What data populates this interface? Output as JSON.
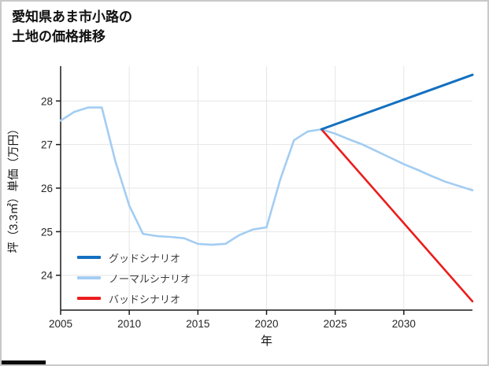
{
  "page": {
    "title_line1": "愛知県あま市小路の",
    "title_line2": "土地の価格推移"
  },
  "chart_data": {
    "type": "line",
    "title": "愛知県あま市小路の土地の価格推移",
    "xlabel": "年",
    "ylabel": "坪（3.3㎡）単価（万円）",
    "xlim": [
      2005,
      2035
    ],
    "ylim": [
      23.2,
      28.8
    ],
    "x_ticks": [
      2005,
      2010,
      2015,
      2020,
      2025,
      2030
    ],
    "y_ticks": [
      24,
      25,
      26,
      27,
      28
    ],
    "grid": true,
    "legend_position": "lower-left",
    "colors": {
      "grid": "#e6e6e6",
      "axis": "#1a1a1a",
      "tick_text": "#262626"
    },
    "series": [
      {
        "name": "グッドシナリオ",
        "color": "#1470c0",
        "width": 3,
        "x": [
          2024,
          2035
        ],
        "y": [
          27.35,
          28.6
        ]
      },
      {
        "name": "ノーマルシナリオ",
        "color": "#a3cdf2",
        "width": 2.6,
        "x": [
          2005,
          2006,
          2007,
          2008,
          2009,
          2010,
          2011,
          2012,
          2013,
          2014,
          2015,
          2016,
          2017,
          2018,
          2019,
          2020,
          2021,
          2022,
          2023,
          2024,
          2025,
          2026,
          2027,
          2028,
          2029,
          2030,
          2031,
          2032,
          2033,
          2034,
          2035
        ],
        "y": [
          27.55,
          27.75,
          27.85,
          27.85,
          26.6,
          25.6,
          24.95,
          24.9,
          24.88,
          24.85,
          24.72,
          24.7,
          24.72,
          24.92,
          25.05,
          25.1,
          26.2,
          27.1,
          27.3,
          27.35,
          27.25,
          27.12,
          27.0,
          26.85,
          26.7,
          26.55,
          26.42,
          26.28,
          26.15,
          26.05,
          25.95
        ]
      },
      {
        "name": "バッドシナリオ",
        "color": "#ec1d1d",
        "width": 2.6,
        "x": [
          2024,
          2035
        ],
        "y": [
          27.35,
          23.4
        ]
      }
    ]
  }
}
